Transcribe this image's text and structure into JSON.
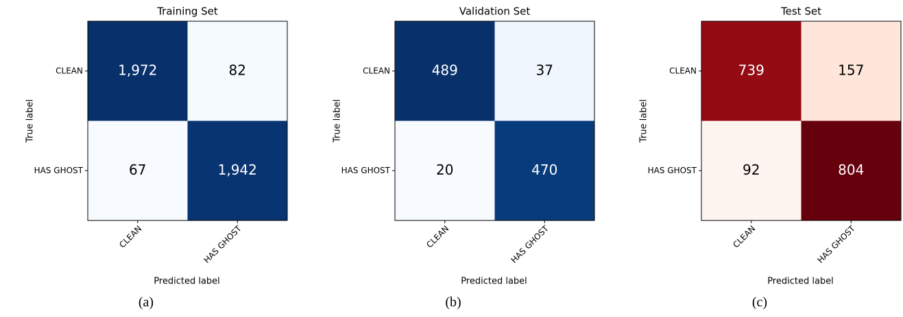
{
  "chart_data": [
    {
      "type": "heatmap",
      "title": "Training Set",
      "colormap": "Blues",
      "x_label": "Predicted label",
      "y_label": "True label",
      "caption": "(a)",
      "x_categories": [
        "CLEAN",
        "HAS GHOST"
      ],
      "y_categories": [
        "CLEAN",
        "HAS GHOST"
      ],
      "values": [
        [
          1972,
          82
        ],
        [
          67,
          1942
        ]
      ],
      "value_labels": [
        [
          "1,972",
          "82"
        ],
        [
          "67",
          "1,942"
        ]
      ]
    },
    {
      "type": "heatmap",
      "title": "Validation Set",
      "colormap": "Blues",
      "x_label": "Predicted label",
      "y_label": "True label",
      "caption": "(b)",
      "x_categories": [
        "CLEAN",
        "HAS GHOST"
      ],
      "y_categories": [
        "CLEAN",
        "HAS GHOST"
      ],
      "values": [
        [
          489,
          37
        ],
        [
          20,
          470
        ]
      ]
    },
    {
      "type": "heatmap",
      "title": "Test Set",
      "colormap": "Reds",
      "x_label": "Predicted label",
      "y_label": "True label",
      "caption": "(c)",
      "x_categories": [
        "CLEAN",
        "HAS GHOST"
      ],
      "y_categories": [
        "CLEAN",
        "HAS GHOST"
      ],
      "values": [
        [
          739,
          157
        ],
        [
          92,
          804
        ]
      ]
    }
  ]
}
